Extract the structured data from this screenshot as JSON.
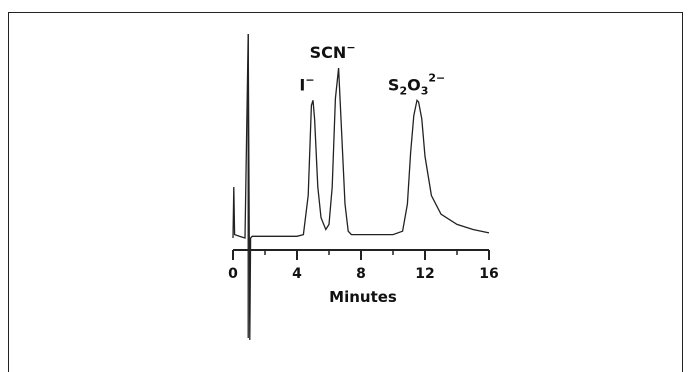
{
  "chart_data": {
    "type": "line",
    "title": "",
    "xlabel": "Minutes",
    "ylabel": "",
    "xlim": [
      0,
      16
    ],
    "xticks": [
      "0",
      "4",
      "8",
      "12",
      "16"
    ],
    "grid": false,
    "series": [
      {
        "x": [
          0.0,
          0.05,
          0.1,
          0.4,
          0.75,
          0.95,
          1.05,
          1.1,
          1.2,
          1.5,
          2.0,
          3.0,
          4.0,
          4.4,
          4.7,
          4.9,
          5.0,
          5.1,
          5.3,
          5.5,
          5.8,
          6.0,
          6.2,
          6.4,
          6.6,
          6.8,
          7.0,
          7.2,
          7.4,
          7.6,
          8.0,
          9.0,
          10.0,
          10.6,
          10.9,
          11.1,
          11.3,
          11.5,
          11.6,
          11.8,
          12.0,
          12.4,
          13.0,
          14.0,
          15.0,
          16.0
        ],
        "y": [
          0.0,
          0.3,
          0.02,
          0.01,
          0.0,
          1.2,
          -0.6,
          0.0,
          0.01,
          0.01,
          0.01,
          0.01,
          0.01,
          0.02,
          0.25,
          0.78,
          0.81,
          0.7,
          0.3,
          0.12,
          0.05,
          0.08,
          0.3,
          0.82,
          1.0,
          0.6,
          0.2,
          0.04,
          0.02,
          0.02,
          0.02,
          0.02,
          0.02,
          0.04,
          0.2,
          0.5,
          0.72,
          0.81,
          0.8,
          0.7,
          0.48,
          0.25,
          0.14,
          0.08,
          0.05,
          0.03
        ]
      }
    ],
    "annotations": [
      {
        "text": "I",
        "charge": "−",
        "x": 5.0
      },
      {
        "text": "SCN",
        "charge": "−",
        "x": 6.6
      },
      {
        "text": "S",
        "sub1": "2",
        "mid": "O",
        "sub2": "3",
        "charge": "2−",
        "x": 11.6
      }
    ]
  }
}
